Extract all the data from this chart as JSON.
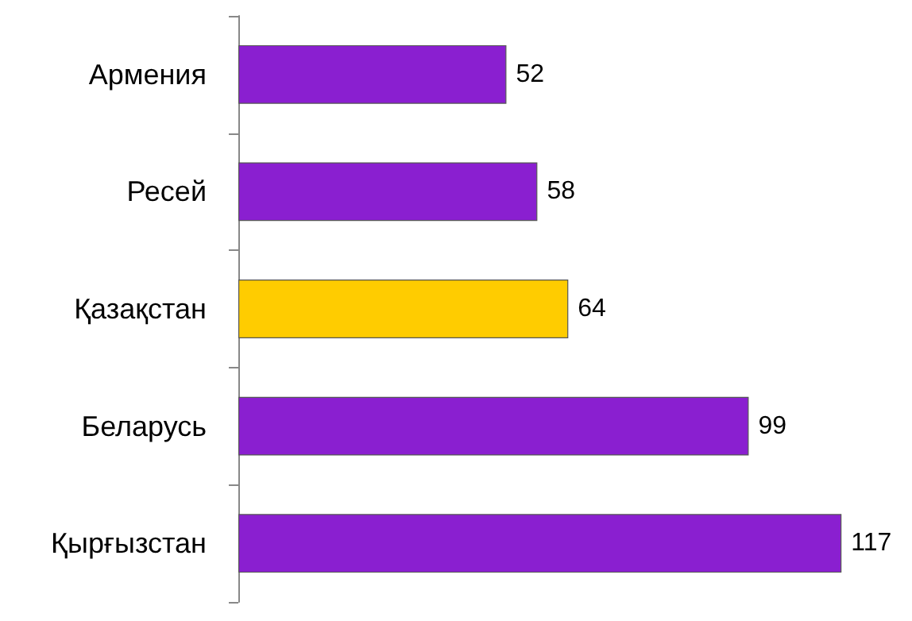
{
  "chart_data": {
    "type": "bar",
    "orientation": "horizontal",
    "data_labels": true,
    "grid": false,
    "categories": [
      "Армения",
      "Ресей",
      "Қазақстан",
      "Беларусь",
      "Қырғызстан"
    ],
    "values": [
      52,
      58,
      64,
      99,
      117
    ],
    "colors": [
      "#8a1fd0",
      "#8a1fd0",
      "#ffcc00",
      "#8a1fd0",
      "#8a1fd0"
    ],
    "tick_labels": "y"
  }
}
